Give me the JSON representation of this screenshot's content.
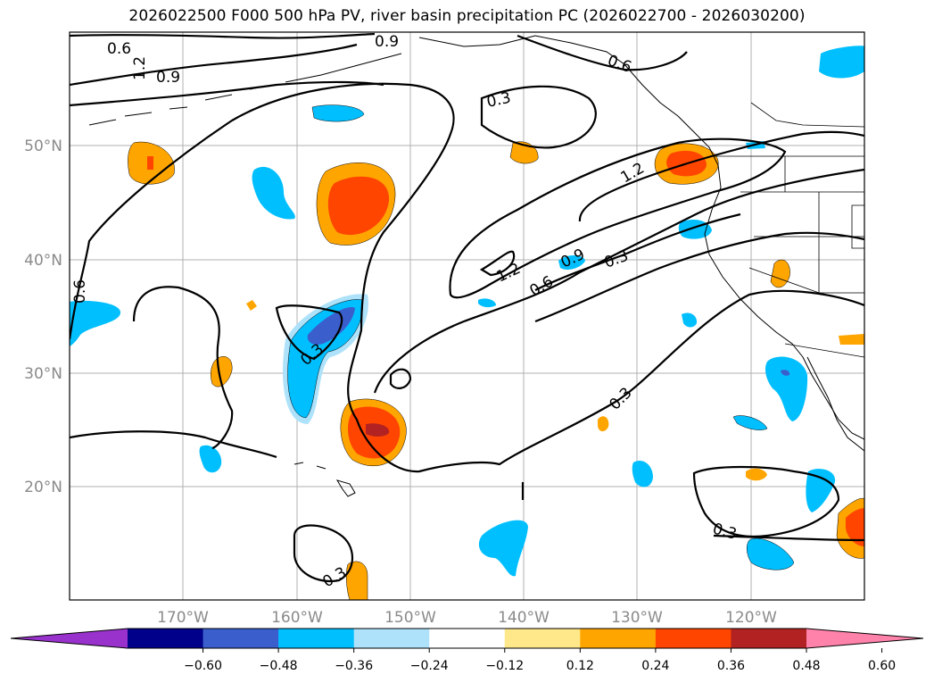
{
  "title": "2026022500 F000 500 hPa PV, river basin precipitation PC (2026022700 - 2026030200)",
  "lat_labels": [
    "50°N",
    "40°N",
    "30°N",
    "20°N"
  ],
  "lon_labels": [
    "170°W",
    "160°W",
    "150°W",
    "140°W",
    "130°W",
    "120°W"
  ],
  "contour_labels": [
    "0.9",
    "1.2",
    "0.9",
    "0.6",
    "0.6",
    "0.3",
    "1.2",
    "1.2",
    "0.9",
    "0.6",
    "0.3",
    "0.6",
    "0.3",
    "0.3",
    "0.3",
    "0.3"
  ],
  "colorbar": {
    "colors": [
      "#9932CC",
      "#00008B",
      "#3A5FCD",
      "#00BFFF",
      "#ADE2FA",
      "#FFFFFF",
      "#FFE88A",
      "#FFA500",
      "#FF4500",
      "#B22222",
      "#FF82AB"
    ],
    "tick_labels": [
      "−0.60",
      "−0.48",
      "−0.36",
      "−0.24",
      "−0.12",
      "0.12",
      "0.24",
      "0.36",
      "0.48",
      "0.60"
    ]
  },
  "map": {
    "lon_range": [
      -180,
      -110
    ],
    "lat_range": [
      10,
      60
    ],
    "gridlines": true,
    "contour_field": "500 hPa PV",
    "shaded_field": "river basin precipitation PC"
  }
}
